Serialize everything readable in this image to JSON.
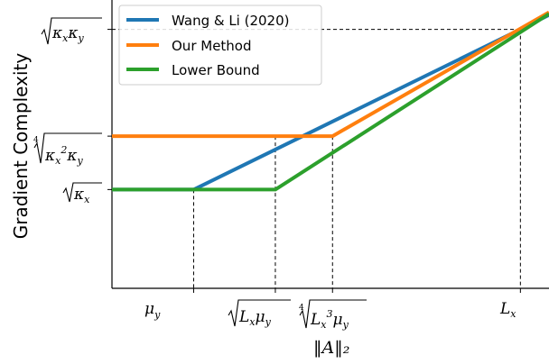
{
  "chart_data": {
    "type": "line",
    "title": "",
    "xlabel": "‖A‖₂",
    "ylabel": "Gradient Complexity",
    "grid": false,
    "legend_position": "top-left",
    "x_ticks": [
      {
        "id": "mu_y",
        "x": 1.0
      },
      {
        "id": "sqrt_Lx_muy",
        "x": 2.0
      },
      {
        "id": "root4_Lx3_muy",
        "x": 2.7
      },
      {
        "id": "L_x",
        "x": 5.0
      }
    ],
    "y_ticks": [
      {
        "id": "sqrt_kx",
        "y": 1.0
      },
      {
        "id": "root4_kx2_ky",
        "y": 2.0
      },
      {
        "id": "sqrt_kx_ky",
        "y": 4.0
      }
    ],
    "xlim": [
      0.0,
      5.35
    ],
    "ylim": [
      -0.85,
      4.55
    ],
    "series": [
      {
        "name": "Wang & Li (2020)",
        "color": "#1f77b4",
        "points": [
          [
            0.0,
            1.0
          ],
          [
            1.0,
            1.0
          ],
          [
            5.0,
            4.0
          ],
          [
            5.35,
            4.27
          ]
        ]
      },
      {
        "name": "Our Method",
        "color": "#ff7f0e",
        "points": [
          [
            0.0,
            2.0
          ],
          [
            2.7,
            2.0
          ],
          [
            5.35,
            4.32
          ]
        ]
      },
      {
        "name": "Lower Bound",
        "color": "#2ca02c",
        "points": [
          [
            0.0,
            1.0
          ],
          [
            2.0,
            1.0
          ],
          [
            5.35,
            4.29
          ]
        ]
      }
    ],
    "reference_lines": [
      {
        "id": "x_mu_y",
        "from": [
          1.0,
          1.0
        ],
        "to": [
          1.0,
          -0.85
        ]
      },
      {
        "id": "x_sqrt_Lx_muy",
        "from": [
          2.0,
          2.0
        ],
        "to": [
          2.0,
          -0.85
        ]
      },
      {
        "id": "x_root4_Lx3_muy",
        "from": [
          2.7,
          2.0
        ],
        "to": [
          2.7,
          -0.85
        ]
      },
      {
        "id": "x_L_x",
        "from": [
          5.0,
          4.0
        ],
        "to": [
          5.0,
          -0.85
        ]
      },
      {
        "id": "y_sqrt_kx_ky",
        "from": [
          0.0,
          4.0
        ],
        "to": [
          5.0,
          4.0
        ]
      }
    ]
  }
}
